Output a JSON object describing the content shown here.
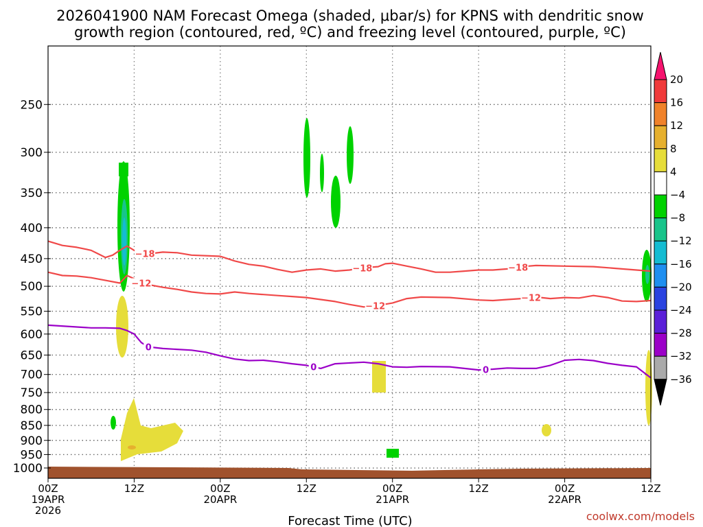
{
  "chart_data": {
    "type": "time-height cross section",
    "title_line1": "2026041900 NAM Forecast Omega (shaded, μbar/s) for KPNS with dendritic snow",
    "title_line2": "growth region (contoured, red, ºC) and freezing level (contoured, purple, ºC)",
    "xlabel": "Forecast Time (UTC)",
    "credit": "coolwx.com/models",
    "x_range_hours": [
      0,
      84
    ],
    "y_range_hpa": [
      1040,
      200
    ],
    "y_ticks": [
      250,
      300,
      350,
      400,
      450,
      500,
      550,
      600,
      650,
      700,
      750,
      800,
      850,
      900,
      950,
      1000
    ],
    "x_ticks": [
      {
        "hour": 0,
        "lines": [
          "00Z",
          "19APR",
          "2026"
        ]
      },
      {
        "hour": 12,
        "lines": [
          "12Z"
        ]
      },
      {
        "hour": 24,
        "lines": [
          "00Z",
          "20APR"
        ]
      },
      {
        "hour": 36,
        "lines": [
          "12Z"
        ]
      },
      {
        "hour": 48,
        "lines": [
          "00Z",
          "21APR"
        ]
      },
      {
        "hour": 60,
        "lines": [
          "12Z"
        ]
      },
      {
        "hour": 72,
        "lines": [
          "00Z",
          "22APR"
        ]
      },
      {
        "hour": 84,
        "lines": [
          "12Z"
        ]
      }
    ],
    "colorbar": {
      "labels": [
        "20",
        "16",
        "12",
        "8",
        "4",
        "−4",
        "−8",
        "−12",
        "−16",
        "−20",
        "−24",
        "−28",
        "−32",
        "−36"
      ],
      "colors": [
        "#f6136e",
        "#f03a3a",
        "#f0822a",
        "#e6b02e",
        "#e6dd3a",
        "#ffffff",
        "#00d200",
        "#18c48a",
        "#14bcd2",
        "#1f8ff0",
        "#2a43e0",
        "#5a1fd8",
        "#9b00c8",
        "#aaaaaa",
        "#000000"
      ]
    },
    "series": [
      {
        "name": "-18",
        "color": "#f04848",
        "label": "−18",
        "label_hours": [
          13.5,
          43.8,
          65.5
        ],
        "points": [
          [
            0,
            421
          ],
          [
            2,
            428
          ],
          [
            4,
            431
          ],
          [
            6,
            436
          ],
          [
            7,
            442
          ],
          [
            8,
            448
          ],
          [
            9,
            444
          ],
          [
            10,
            436
          ],
          [
            11,
            429
          ],
          [
            12,
            436
          ],
          [
            13,
            441
          ],
          [
            14,
            442
          ],
          [
            16,
            439
          ],
          [
            18,
            440
          ],
          [
            20,
            444
          ],
          [
            24,
            446
          ],
          [
            26,
            454
          ],
          [
            28,
            460
          ],
          [
            30,
            463
          ],
          [
            32,
            469
          ],
          [
            34,
            474
          ],
          [
            36,
            470
          ],
          [
            38,
            468
          ],
          [
            40,
            472
          ],
          [
            42,
            470
          ],
          [
            44,
            466
          ],
          [
            46,
            464
          ],
          [
            47,
            459
          ],
          [
            48,
            458
          ],
          [
            50,
            463
          ],
          [
            52,
            468
          ],
          [
            54,
            474
          ],
          [
            56,
            474
          ],
          [
            58,
            472
          ],
          [
            60,
            470
          ],
          [
            62,
            470
          ],
          [
            64,
            468
          ],
          [
            66,
            464
          ],
          [
            68,
            462
          ],
          [
            72,
            463
          ],
          [
            76,
            464
          ],
          [
            78,
            466
          ],
          [
            80,
            468
          ],
          [
            82,
            470
          ],
          [
            84,
            472
          ]
        ]
      },
      {
        "name": "-12",
        "color": "#f04848",
        "label": "−12",
        "label_hours": [
          13.0,
          45.6,
          67.3
        ],
        "points": [
          [
            0,
            474
          ],
          [
            2,
            480
          ],
          [
            4,
            481
          ],
          [
            6,
            484
          ],
          [
            8,
            489
          ],
          [
            10,
            494
          ],
          [
            11,
            480
          ],
          [
            12,
            486
          ],
          [
            13,
            494
          ],
          [
            14,
            497
          ],
          [
            16,
            502
          ],
          [
            18,
            506
          ],
          [
            20,
            511
          ],
          [
            22,
            514
          ],
          [
            24,
            515
          ],
          [
            26,
            511
          ],
          [
            28,
            514
          ],
          [
            30,
            516
          ],
          [
            32,
            518
          ],
          [
            34,
            520
          ],
          [
            36,
            522
          ],
          [
            38,
            526
          ],
          [
            40,
            530
          ],
          [
            42,
            536
          ],
          [
            44,
            541
          ],
          [
            46,
            538
          ],
          [
            48,
            533
          ],
          [
            50,
            524
          ],
          [
            52,
            521
          ],
          [
            56,
            522
          ],
          [
            60,
            527
          ],
          [
            62,
            528
          ],
          [
            64,
            526
          ],
          [
            66,
            524
          ],
          [
            68,
            521
          ],
          [
            70,
            524
          ],
          [
            72,
            522
          ],
          [
            74,
            523
          ],
          [
            76,
            518
          ],
          [
            78,
            522
          ],
          [
            80,
            529
          ],
          [
            82,
            530
          ],
          [
            84,
            528
          ]
        ]
      },
      {
        "name": "0",
        "color": "#9b00c8",
        "label": "0",
        "label_hours": [
          14.0,
          37.0,
          61.0
        ],
        "points": [
          [
            0,
            580
          ],
          [
            4,
            584
          ],
          [
            6,
            586
          ],
          [
            8,
            586
          ],
          [
            10,
            587
          ],
          [
            11,
            592
          ],
          [
            12,
            600
          ],
          [
            13,
            620
          ],
          [
            14,
            630
          ],
          [
            16,
            634
          ],
          [
            18,
            636
          ],
          [
            20,
            638
          ],
          [
            22,
            643
          ],
          [
            24,
            652
          ],
          [
            26,
            660
          ],
          [
            28,
            664
          ],
          [
            30,
            663
          ],
          [
            32,
            667
          ],
          [
            34,
            672
          ],
          [
            36,
            676
          ],
          [
            38,
            684
          ],
          [
            40,
            672
          ],
          [
            44,
            668
          ],
          [
            46,
            672
          ],
          [
            48,
            680
          ],
          [
            50,
            681
          ],
          [
            52,
            679
          ],
          [
            56,
            680
          ],
          [
            60,
            688
          ],
          [
            62,
            686
          ],
          [
            64,
            683
          ],
          [
            66,
            684
          ],
          [
            68,
            684
          ],
          [
            70,
            676
          ],
          [
            72,
            663
          ],
          [
            74,
            661
          ],
          [
            76,
            664
          ],
          [
            78,
            671
          ],
          [
            80,
            676
          ],
          [
            82,
            680
          ],
          [
            84,
            709
          ]
        ]
      }
    ]
  }
}
